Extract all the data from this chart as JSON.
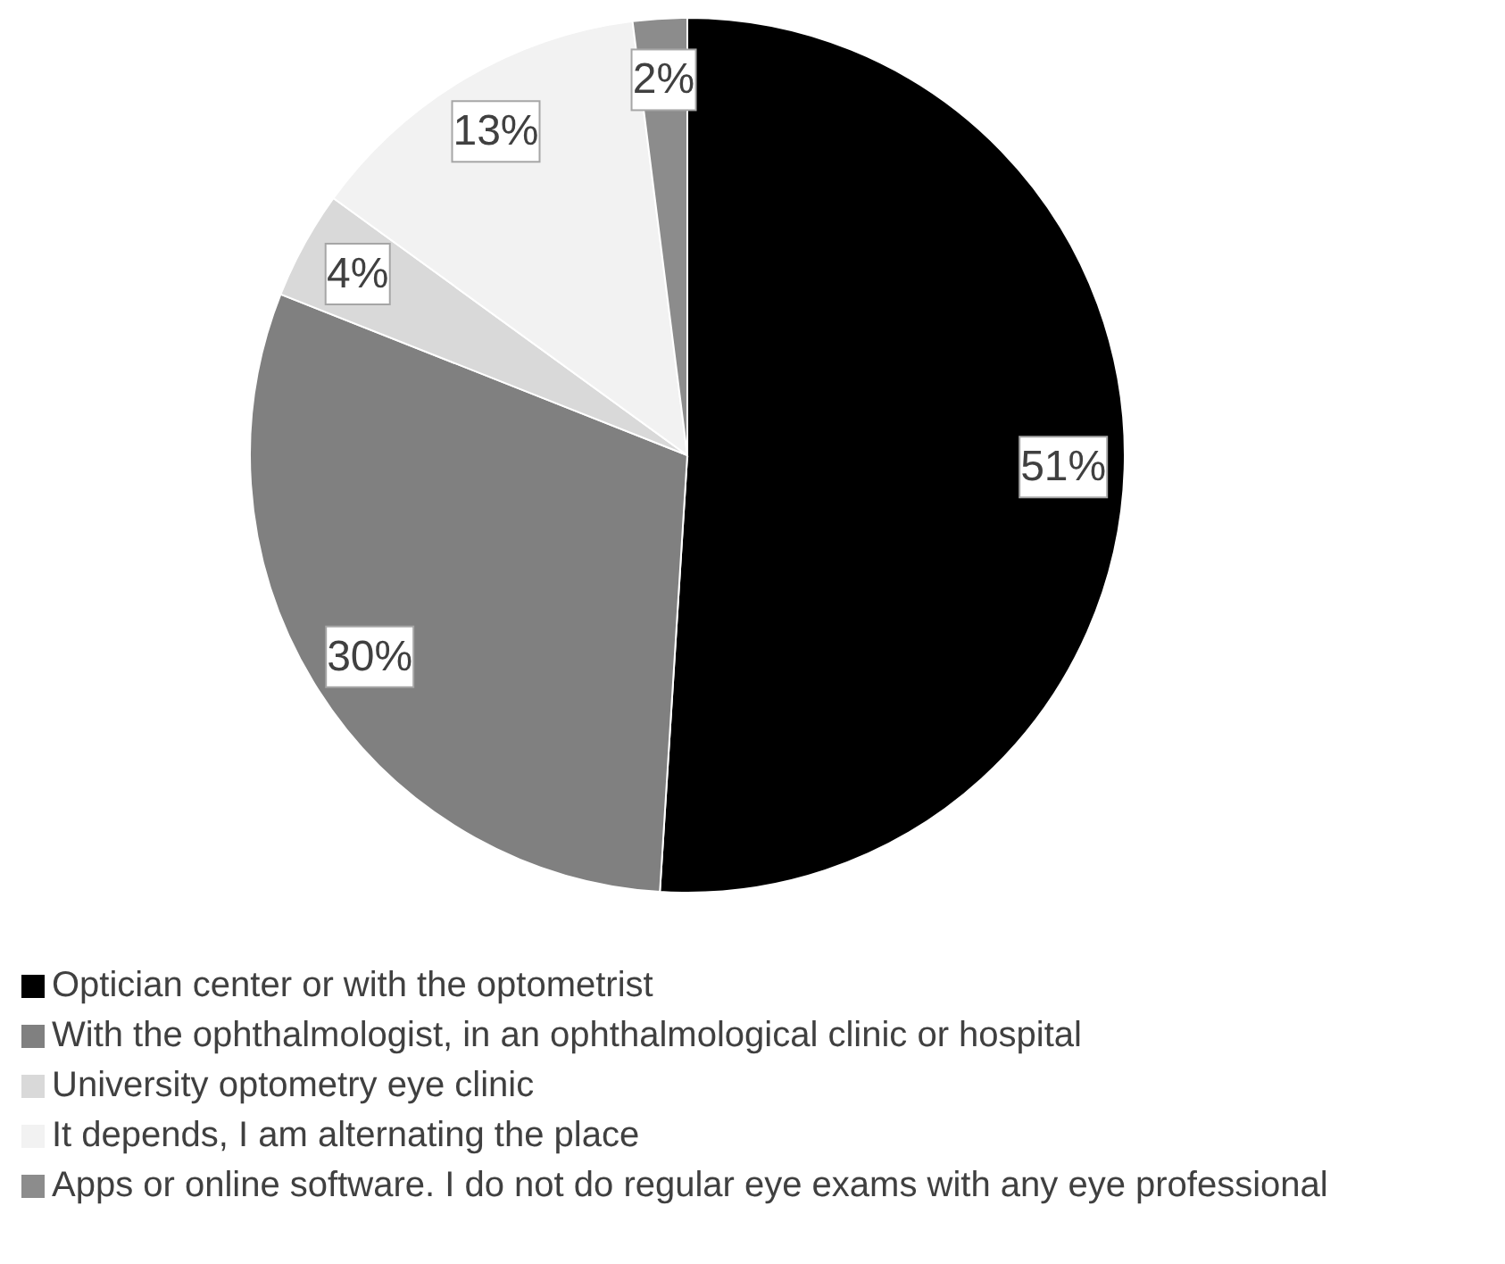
{
  "chart_data": {
    "type": "pie",
    "categories": [
      "Optician center or with the optometrist",
      "With the ophthalmologist, in an ophthalmological clinic or hospital",
      "University optometry eye clinic",
      "It depends, I am alternating the place",
      "Apps or online software. I do not do regular eye exams with any eye professional"
    ],
    "values": [
      51,
      30,
      4,
      13,
      2
    ],
    "value_labels": [
      "51%",
      "30%",
      "4%",
      "13%",
      "2%"
    ],
    "colors": [
      "#000000",
      "#808080",
      "#d9d9d9",
      "#f2f2f2",
      "#8c8c8c"
    ],
    "legend": "bottom"
  }
}
